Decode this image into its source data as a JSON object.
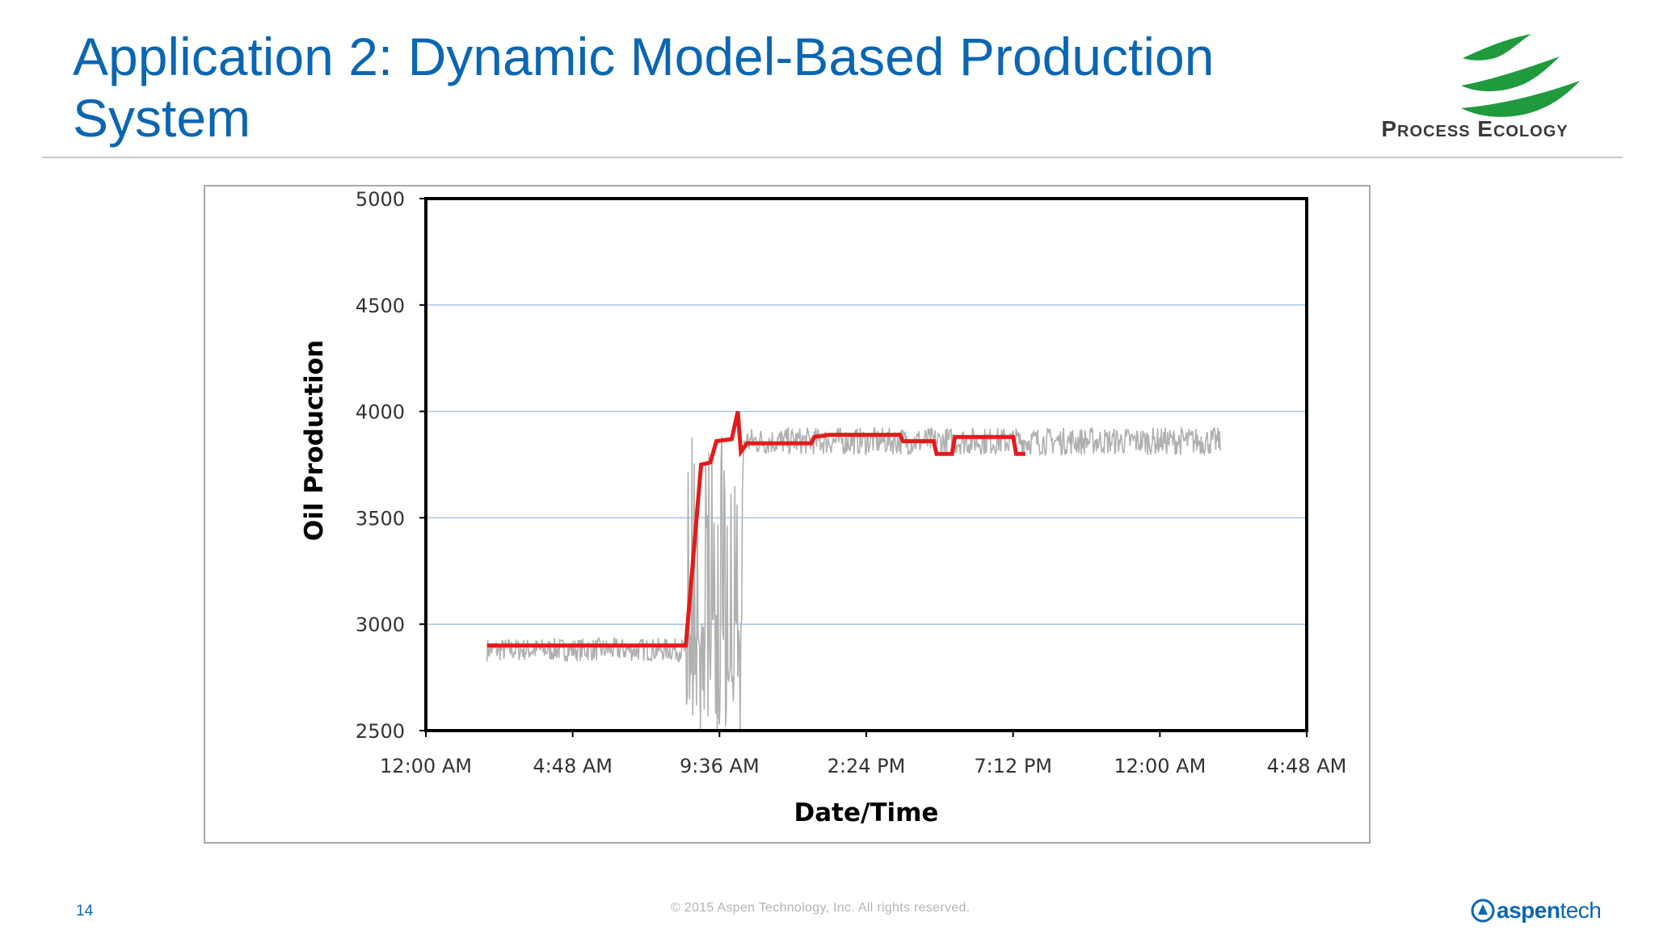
{
  "slide": {
    "title": "Application 2: Dynamic Model-Based Production System",
    "page_number": "14",
    "copyright": "© 2015 Aspen Technology, Inc. All rights reserved.",
    "logo_text": "Process Ecology",
    "brand_bold": "aspen",
    "brand_light": "tech",
    "colors": {
      "title": "#0b66b2",
      "logo_green": "#1f9a3c",
      "brand": "#0b66b2"
    }
  },
  "chart_data": {
    "type": "line",
    "title": "",
    "xlabel": "Date/Time",
    "ylabel": "Oil Production",
    "xlim_hours": [
      0,
      28.8
    ],
    "ylim": [
      2500,
      5000
    ],
    "yticks": [
      2500,
      3000,
      3500,
      4000,
      4500,
      5000
    ],
    "xticks": [
      {
        "hour": 0,
        "label": "12:00 AM"
      },
      {
        "hour": 4.8,
        "label": "4:48 AM"
      },
      {
        "hour": 9.6,
        "label": "9:36 AM"
      },
      {
        "hour": 14.4,
        "label": "2:24 PM"
      },
      {
        "hour": 19.2,
        "label": "7:12 PM"
      },
      {
        "hour": 24,
        "label": "12:00 AM"
      },
      {
        "hour": 28.8,
        "label": "4:48 AM"
      }
    ],
    "grid": {
      "horizontal": true,
      "color": "#a8c4e8"
    },
    "legend": "none",
    "series": [
      {
        "color": "#b0b0b0",
        "style": "noisy-measured",
        "segments": [
          {
            "x0": 2.0,
            "x1": 8.5,
            "level": 2880,
            "noise": 55
          },
          {
            "x0": 8.5,
            "x1": 10.4,
            "level": 3200,
            "noise": 450
          },
          {
            "x0": 10.4,
            "x1": 26.0,
            "level": 3860,
            "noise": 65
          }
        ]
      },
      {
        "color": "#e31b1b",
        "style": "model",
        "points": [
          [
            2.0,
            2900
          ],
          [
            8.5,
            2900
          ],
          [
            9.0,
            3750
          ],
          [
            9.3,
            3760
          ],
          [
            9.5,
            3860
          ],
          [
            10.0,
            3870
          ],
          [
            10.2,
            4000
          ],
          [
            10.3,
            3810
          ],
          [
            10.5,
            3850
          ],
          [
            12.6,
            3850
          ],
          [
            12.7,
            3880
          ],
          [
            13.2,
            3890
          ],
          [
            15.5,
            3890
          ],
          [
            15.6,
            3860
          ],
          [
            16.6,
            3860
          ],
          [
            16.7,
            3800
          ],
          [
            17.2,
            3800
          ],
          [
            17.3,
            3880
          ],
          [
            19.2,
            3880
          ],
          [
            19.3,
            3800
          ],
          [
            19.6,
            3800
          ]
        ]
      }
    ]
  }
}
